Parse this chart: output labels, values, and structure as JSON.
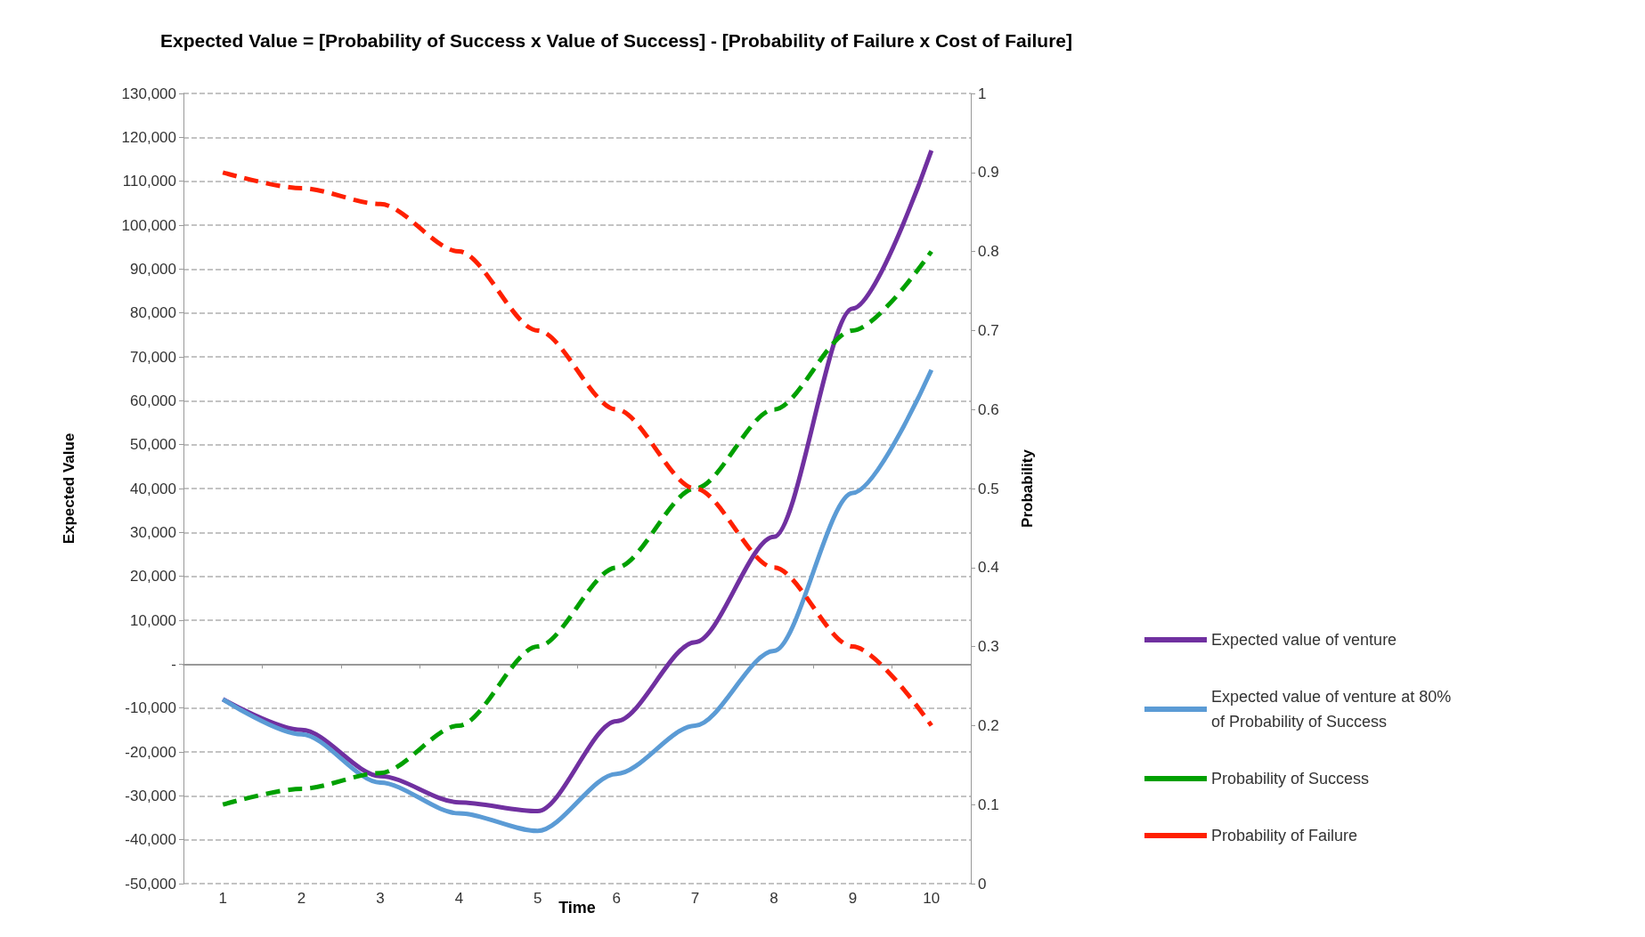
{
  "chart_data": {
    "type": "line",
    "title": "Expected Value = [Probability of Success x Value of Success] - [Probability of Failure x Cost of Failure]",
    "xlabel": "Time",
    "ylabel": "Expected Value",
    "y2label": "Probability",
    "categories": [
      "1",
      "2",
      "3",
      "4",
      "5",
      "6",
      "7",
      "8",
      "9",
      "10"
    ],
    "series": [
      {
        "name": "Expected value of venture",
        "color": "#7030a0",
        "line_style": "solid",
        "values": [
          -8000,
          -15000,
          -25500,
          -31500,
          -33500,
          -13000,
          5000,
          29000,
          81000,
          117000
        ]
      },
      {
        "name": "Expected value of venture at 80% of Probability of Success",
        "color": "#5b9bd5",
        "line_style": "solid",
        "values": [
          -8000,
          -16000,
          -27000,
          -34000,
          -38000,
          -25000,
          -14000,
          3000,
          39000,
          67000
        ]
      },
      {
        "name": "Probability of Success",
        "color": "#00a000",
        "line_style": "dashed",
        "axis": "y2",
        "values": [
          0.1,
          0.12,
          0.14,
          0.2,
          0.3,
          0.4,
          0.5,
          0.6,
          0.7,
          0.8
        ]
      },
      {
        "name": "Probability of Failure",
        "color": "#ff2000",
        "line_style": "dashed",
        "axis": "y2",
        "values": [
          0.9,
          0.88,
          0.86,
          0.8,
          0.7,
          0.6,
          0.5,
          0.4,
          0.3,
          0.2
        ]
      }
    ],
    "ylim": [
      -50000,
      130000
    ],
    "yticks": [
      {
        "value": -50000,
        "label": "-50,000"
      },
      {
        "value": -40000,
        "label": "-40,000"
      },
      {
        "value": -30000,
        "label": "-30,000"
      },
      {
        "value": -20000,
        "label": "-20,000"
      },
      {
        "value": -10000,
        "label": "-10,000"
      },
      {
        "value": 0,
        "label": "-"
      },
      {
        "value": 10000,
        "label": "10,000"
      },
      {
        "value": 20000,
        "label": "20,000"
      },
      {
        "value": 30000,
        "label": "30,000"
      },
      {
        "value": 40000,
        "label": "40,000"
      },
      {
        "value": 50000,
        "label": "50,000"
      },
      {
        "value": 60000,
        "label": "60,000"
      },
      {
        "value": 70000,
        "label": "70,000"
      },
      {
        "value": 80000,
        "label": "80,000"
      },
      {
        "value": 90000,
        "label": "90,000"
      },
      {
        "value": 100000,
        "label": "100,000"
      },
      {
        "value": 110000,
        "label": "110,000"
      },
      {
        "value": 120000,
        "label": "120,000"
      },
      {
        "value": 130000,
        "label": "130,000"
      }
    ],
    "y2lim": [
      0,
      1
    ],
    "y2ticks": [
      0,
      0.1,
      0.2,
      0.3,
      0.4,
      0.5,
      0.6,
      0.7,
      0.8,
      0.9,
      1
    ],
    "grid": "y",
    "legend": "right",
    "marker": "none"
  }
}
